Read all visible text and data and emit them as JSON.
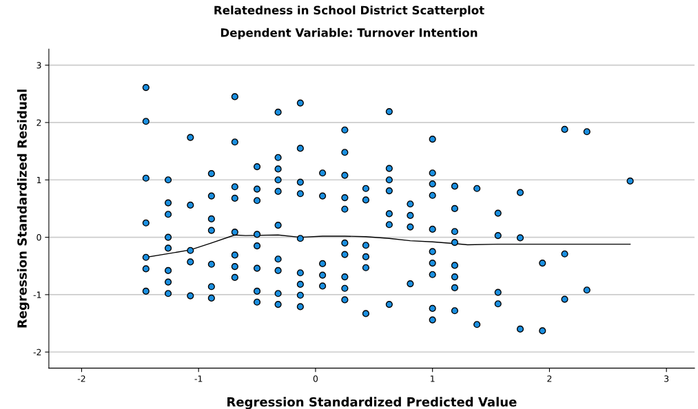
{
  "chart_data": {
    "type": "scatter",
    "title": "Relatedness in School District Scatterplot",
    "subtitle": "Dependent Variable: Turnover Intention",
    "xlabel": "Regression Standardized Predicted Value",
    "ylabel": "Regression Standardized Residual",
    "xlim": [
      -2.28,
      3.24
    ],
    "ylim": [
      -2.28,
      3.28
    ],
    "xticks": [
      -2,
      -1,
      0,
      1,
      2,
      3
    ],
    "yticks": [
      -2,
      -1,
      0,
      1,
      2,
      3
    ],
    "grid": "y",
    "marker": "circle",
    "legend": false,
    "series": [
      {
        "color": "#1a8fe0",
        "x": [
          -1.45,
          -1.45,
          -1.45,
          -1.45,
          -1.45,
          -1.45,
          -1.45,
          -1.26,
          -1.26,
          -1.26,
          -1.26,
          -1.26,
          -1.26,
          -1.26,
          -1.26,
          -1.07,
          -1.07,
          -1.07,
          -1.07,
          -1.07,
          -0.89,
          -0.89,
          -0.89,
          -0.89,
          -0.89,
          -0.89,
          -0.89,
          -0.69,
          -0.69,
          -0.69,
          -0.69,
          -0.69,
          -0.69,
          -0.69,
          -0.69,
          -0.5,
          -0.5,
          -0.5,
          -0.5,
          -0.5,
          -0.5,
          -0.5,
          -0.5,
          -0.32,
          -0.32,
          -0.32,
          -0.32,
          -0.32,
          -0.32,
          -0.32,
          -0.32,
          -0.32,
          -0.32,
          -0.13,
          -0.13,
          -0.13,
          -0.13,
          -0.13,
          -0.13,
          -0.13,
          -0.13,
          -0.13,
          0.06,
          0.06,
          0.06,
          0.06,
          0.06,
          0.25,
          0.25,
          0.25,
          0.25,
          0.25,
          0.25,
          0.25,
          0.25,
          0.25,
          0.25,
          0.43,
          0.43,
          0.43,
          0.43,
          0.43,
          0.43,
          0.63,
          0.63,
          0.63,
          0.63,
          0.63,
          0.63,
          0.63,
          0.81,
          0.81,
          0.81,
          0.81,
          1.0,
          1.0,
          1.0,
          1.0,
          1.0,
          1.0,
          1.0,
          1.0,
          1.0,
          1.0,
          1.19,
          1.19,
          1.19,
          1.19,
          1.19,
          1.19,
          1.19,
          1.19,
          1.38,
          1.38,
          1.56,
          1.56,
          1.56,
          1.56,
          1.75,
          1.75,
          1.75,
          1.94,
          1.94,
          2.13,
          2.13,
          2.13,
          2.32,
          2.32,
          2.69
        ],
        "values": [
          2.61,
          2.02,
          1.03,
          0.25,
          -0.35,
          -0.55,
          -0.94,
          1.0,
          0.6,
          0.4,
          0.0,
          -0.19,
          -0.58,
          -0.78,
          -0.98,
          1.74,
          0.56,
          -0.23,
          -0.43,
          -1.02,
          1.11,
          0.72,
          0.32,
          0.12,
          -0.47,
          -0.86,
          -1.06,
          2.45,
          1.66,
          0.88,
          0.68,
          0.09,
          -0.31,
          -0.51,
          -0.7,
          1.23,
          0.84,
          0.64,
          0.05,
          -0.15,
          -0.54,
          -0.94,
          -1.13,
          2.18,
          1.39,
          1.19,
          1.0,
          0.8,
          0.21,
          -0.38,
          -0.58,
          -0.98,
          -1.17,
          2.34,
          1.55,
          0.96,
          0.76,
          -0.02,
          -0.62,
          -0.82,
          -1.01,
          -1.21,
          1.12,
          0.72,
          -0.46,
          -0.66,
          -0.85,
          1.87,
          1.48,
          1.08,
          0.69,
          0.49,
          -0.1,
          -0.3,
          -0.69,
          -0.89,
          -1.09,
          0.85,
          0.65,
          -0.14,
          -0.34,
          -0.53,
          -1.33,
          2.19,
          1.2,
          1.0,
          0.81,
          0.41,
          0.22,
          -1.17,
          0.58,
          0.38,
          0.18,
          -0.81,
          1.71,
          1.12,
          0.93,
          0.73,
          0.14,
          -0.25,
          -0.45,
          -0.65,
          -1.24,
          -1.44,
          0.89,
          0.5,
          0.1,
          -0.09,
          -0.49,
          -0.69,
          -0.88,
          -1.28,
          0.85,
          -1.52,
          0.42,
          0.03,
          -0.96,
          -1.16,
          0.78,
          -0.01,
          -1.6,
          -0.45,
          -1.63,
          1.88,
          -0.29,
          -1.08,
          1.84,
          -0.92,
          0.98
        ]
      },
      {
        "type": "line",
        "color": "#000000",
        "marker": "none",
        "x": [
          -1.45,
          -1.07,
          -0.89,
          -0.69,
          -0.6,
          -0.32,
          -0.13,
          0.06,
          0.25,
          0.43,
          0.63,
          0.81,
          1.0,
          1.19,
          1.3,
          1.56,
          2.0,
          2.69
        ],
        "values": [
          -0.35,
          -0.22,
          -0.1,
          0.04,
          0.03,
          0.04,
          0.0,
          0.02,
          0.02,
          0.01,
          -0.02,
          -0.06,
          -0.08,
          -0.11,
          -0.13,
          -0.12,
          -0.12,
          -0.12
        ]
      }
    ]
  }
}
